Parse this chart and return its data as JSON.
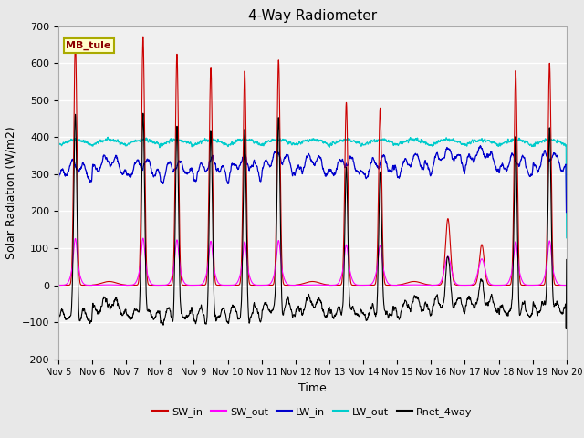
{
  "title": "4-Way Radiometer",
  "xlabel": "Time",
  "ylabel": "Solar Radiation (W/m2)",
  "ylim": [
    -200,
    700
  ],
  "yticks": [
    -200,
    -100,
    0,
    100,
    200,
    300,
    400,
    500,
    600,
    700
  ],
  "xlim": [
    0,
    15
  ],
  "xtick_labels": [
    "Nov 5",
    "Nov 6",
    "Nov 7",
    "Nov 8",
    "Nov 9",
    "Nov 10",
    "Nov 11",
    "Nov 12",
    "Nov 13",
    "Nov 14",
    "Nov 15",
    "Nov 16",
    "Nov 17",
    "Nov 18",
    "Nov 19",
    "Nov 20"
  ],
  "station_label": "MB_tule",
  "colors": {
    "SW_in": "#cc0000",
    "SW_out": "#ff00ff",
    "LW_in": "#0000cc",
    "LW_out": "#00cccc",
    "Rnet_4way": "#000000"
  },
  "bg_color": "#e8e8e8",
  "plot_bg_color": "#f0f0f0",
  "figsize": [
    6.4,
    4.8
  ],
  "dpi": 100
}
